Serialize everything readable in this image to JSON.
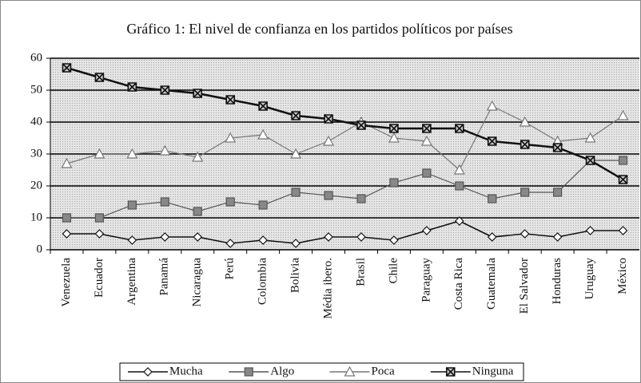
{
  "chart_data": {
    "type": "line",
    "title": "Gráfico 1: El nivel de confianza en los partidos políticos por países",
    "categories": [
      "Venezuela",
      "Ecuador",
      "Argentina",
      "Panamá",
      "Nicaragua",
      "Perú",
      "Colombia",
      "Bolivia",
      "Média ibero.",
      "Brasil",
      "Chile",
      "Paraguay",
      "Costa Rica",
      "Guatemala",
      "El Salvador",
      "Honduras",
      "Uruguay",
      "México"
    ],
    "series": [
      {
        "name": "Mucha",
        "color": "#111111",
        "marker": "diamond",
        "values": [
          5,
          5,
          3,
          4,
          4,
          2,
          3,
          2,
          4,
          4,
          3,
          6,
          9,
          4,
          5,
          4,
          6,
          6
        ]
      },
      {
        "name": "Algo",
        "color": "#555555",
        "marker": "square",
        "values": [
          10,
          10,
          14,
          15,
          12,
          15,
          14,
          18,
          17,
          16,
          21,
          24,
          20,
          16,
          18,
          18,
          28,
          28
        ]
      },
      {
        "name": "Poca",
        "color": "#777777",
        "marker": "triangle",
        "values": [
          27,
          30,
          30,
          31,
          29,
          35,
          36,
          30,
          34,
          40,
          35,
          34,
          25,
          45,
          40,
          34,
          35,
          42
        ]
      },
      {
        "name": "Ninguna",
        "color": "#111111",
        "marker": "xsquare",
        "values": [
          57,
          54,
          51,
          50,
          49,
          47,
          45,
          42,
          41,
          39,
          38,
          38,
          38,
          34,
          33,
          32,
          28,
          22
        ]
      }
    ],
    "ylim": [
      0,
      60
    ],
    "yticks": [
      0,
      10,
      20,
      30,
      40,
      50,
      60
    ],
    "grid": true,
    "legend": "bottom"
  }
}
